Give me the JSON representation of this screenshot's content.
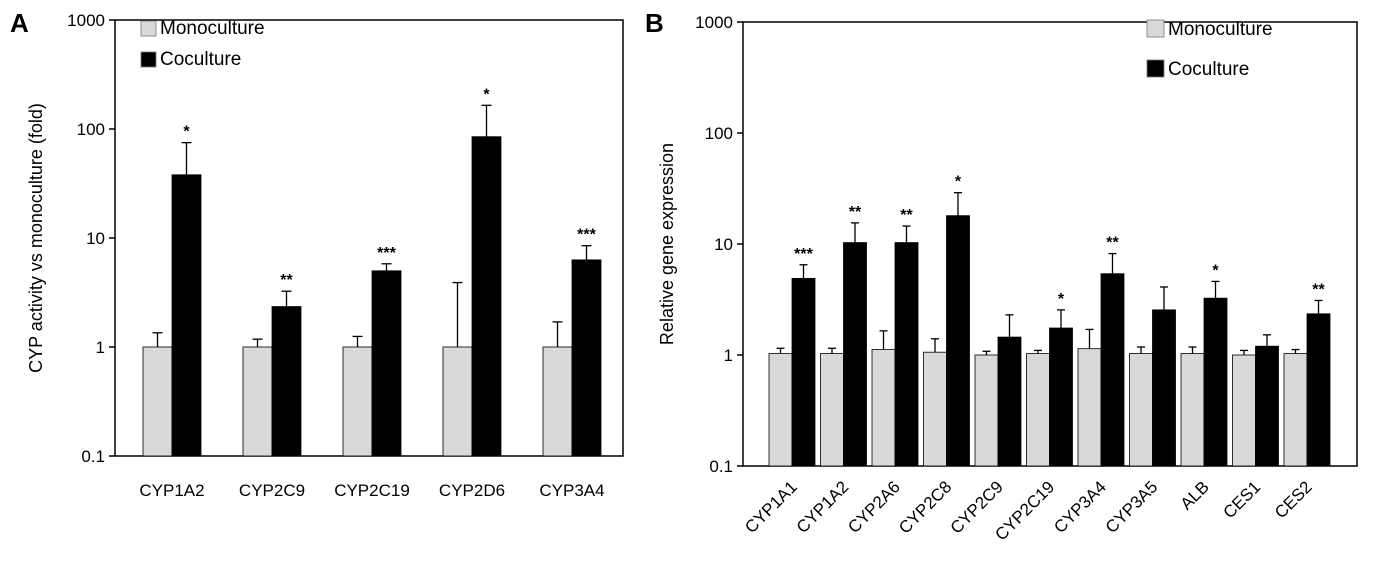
{
  "colors": {
    "monoculture": "#d9d9d9",
    "coculture": "#000000",
    "axis": "#000000"
  },
  "chart_data": [
    {
      "panel_label": "A",
      "type": "bar",
      "scale": "log",
      "ylabel": "CYP activity vs monoculture (fold)",
      "ylim": [
        0.1,
        1000
      ],
      "yticks": [
        "0.1",
        "1",
        "10",
        "100",
        "1000"
      ],
      "categories": [
        "CYP1A2",
        "CYP2C9",
        "CYP2C19",
        "CYP2D6",
        "CYP3A4"
      ],
      "legend": {
        "position": "top-left",
        "entries": [
          "Monoculture",
          "Coculture"
        ]
      },
      "series": [
        {
          "name": "Monoculture",
          "values": [
            1,
            1,
            1,
            1,
            1
          ],
          "errors": [
            1.35,
            1.18,
            1.25,
            3.9,
            1.7
          ]
        },
        {
          "name": "Coculture",
          "values": [
            38,
            2.35,
            5.0,
            85,
            6.3
          ],
          "errors": [
            75,
            3.25,
            5.8,
            165,
            8.5
          ]
        }
      ],
      "significance": [
        "*",
        "**",
        "***",
        "*",
        "***"
      ]
    },
    {
      "panel_label": "B",
      "type": "bar",
      "scale": "log",
      "ylabel": "Relative gene expression",
      "ylim": [
        0.1,
        1000
      ],
      "yticks": [
        "0.1",
        "1",
        "10",
        "100",
        "1000"
      ],
      "categories": [
        "CYP1A1",
        "CYP1A2",
        "CYP2A6",
        "CYP2C8",
        "CYP2C9",
        "CYP2C19",
        "CYP3A4",
        "CYP3A5",
        "ALB",
        "CES1",
        "CES2"
      ],
      "legend": {
        "position": "top-right",
        "entries": [
          "Monoculture",
          "Coculture"
        ]
      },
      "series": [
        {
          "name": "Monoculture",
          "values": [
            1.03,
            1.03,
            1.12,
            1.06,
            1.0,
            1.03,
            1.14,
            1.03,
            1.03,
            1.0,
            1.03
          ],
          "errors": [
            1.15,
            1.15,
            1.65,
            1.4,
            1.08,
            1.1,
            1.7,
            1.18,
            1.18,
            1.1,
            1.12
          ]
        },
        {
          "name": "Coculture",
          "values": [
            4.9,
            10.3,
            10.3,
            18,
            1.45,
            1.75,
            5.4,
            2.55,
            3.25,
            1.2,
            2.35
          ],
          "errors": [
            6.5,
            15.5,
            14.5,
            29,
            2.3,
            2.55,
            8.2,
            4.1,
            4.6,
            1.52,
            3.1
          ]
        }
      ],
      "significance": [
        "***",
        "**",
        "**",
        "*",
        "",
        "*",
        "**",
        "",
        "*",
        "",
        "**"
      ]
    }
  ]
}
